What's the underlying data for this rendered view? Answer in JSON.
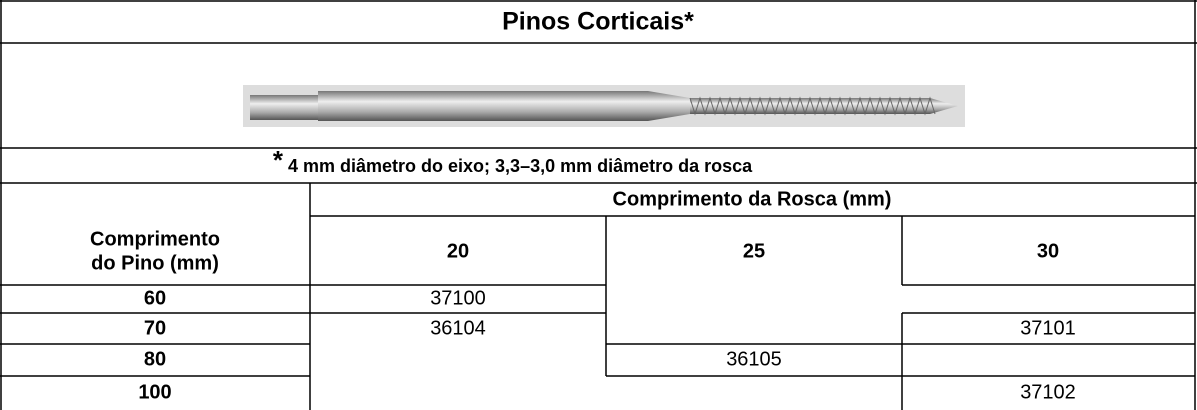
{
  "title": "Pinos  Corticais*",
  "footnote": {
    "marker": "*",
    "text": "4 mm diâmetro do eixo; 3,3–3,0 mm diâmetro da rosca"
  },
  "table": {
    "group_header": "Comprimento da Rosca (mm)",
    "row_header": [
      "Comprimento",
      "do Pino (mm)"
    ],
    "columns": [
      "20",
      "25",
      "30"
    ],
    "rows": [
      {
        "label": "60",
        "cells": [
          "37100",
          null,
          null
        ]
      },
      {
        "label": "70",
        "cells": [
          "36104",
          null,
          "37101"
        ]
      },
      {
        "label": "80",
        "cells": [
          null,
          "36105",
          null
        ]
      },
      {
        "label": "100",
        "cells": [
          null,
          null,
          "37102"
        ]
      }
    ]
  }
}
